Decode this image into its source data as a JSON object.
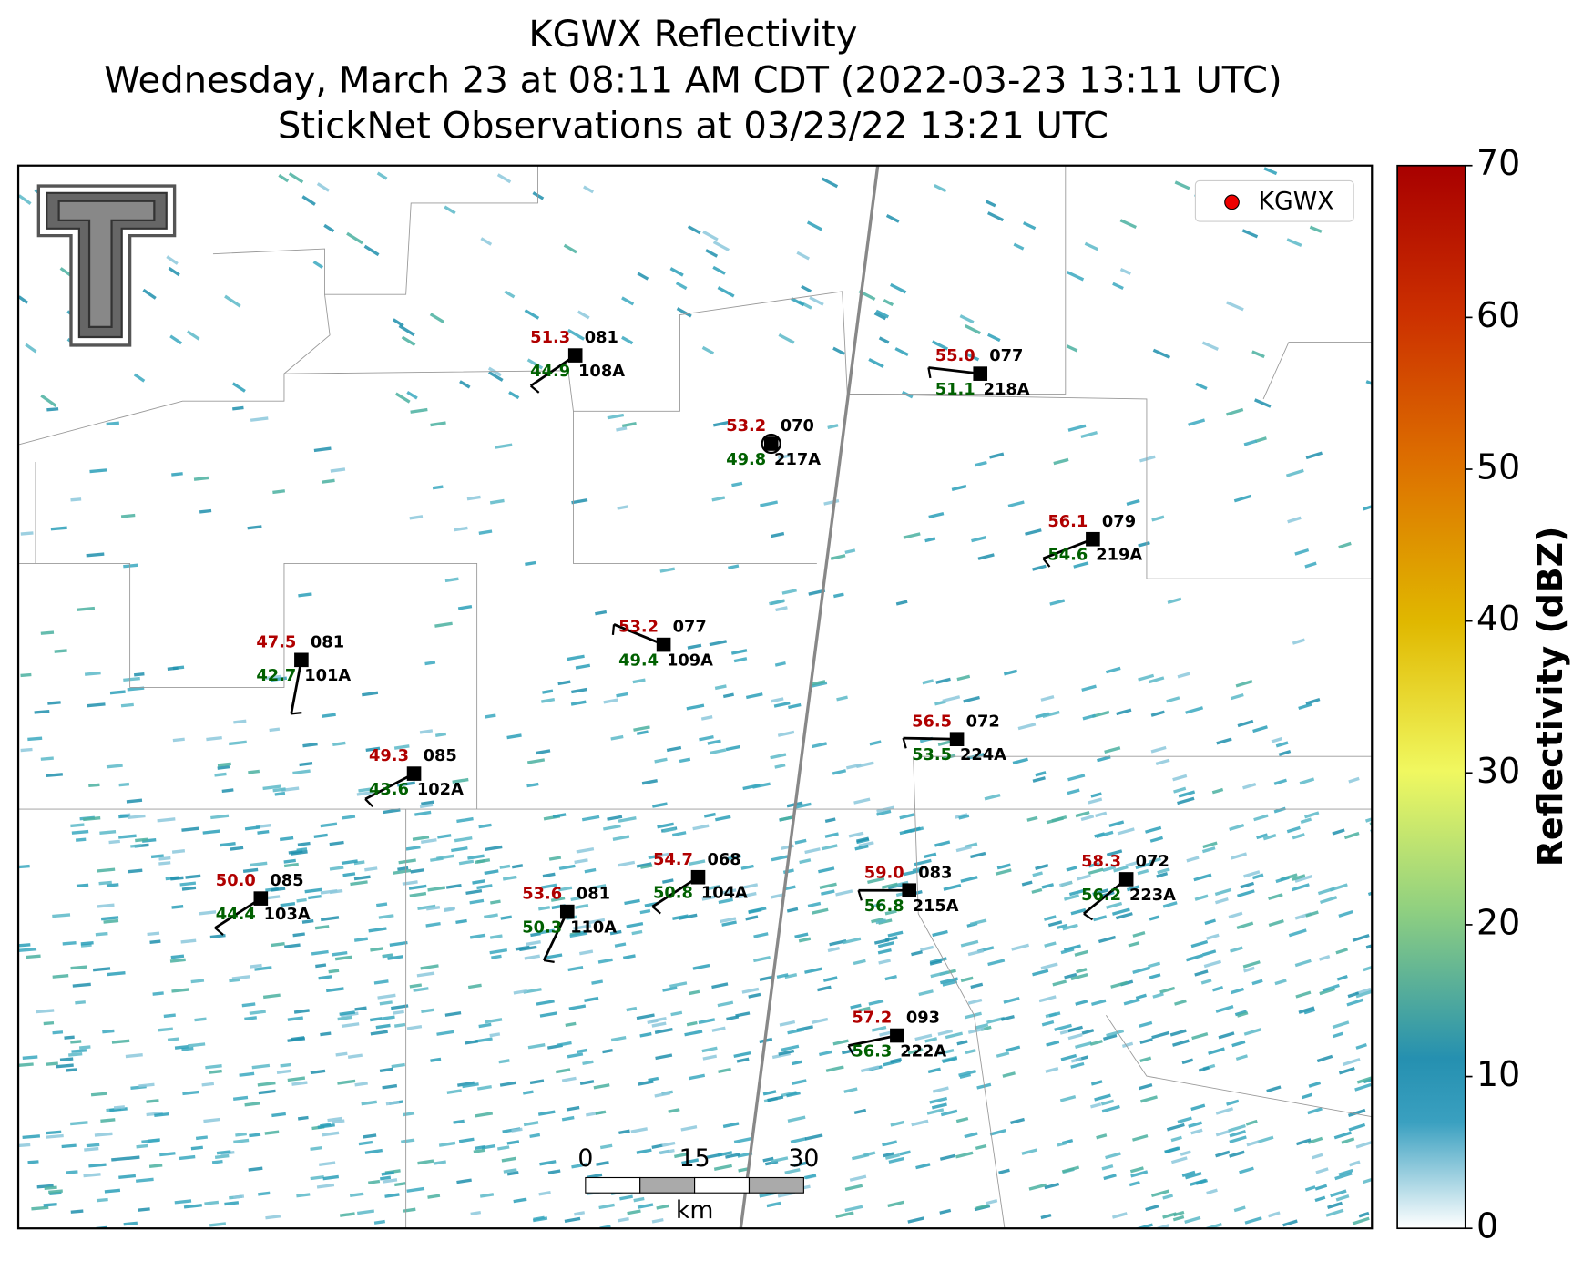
{
  "title_lines": [
    "KGWX Reflectivity",
    "Wednesday, March 23 at 08:11 AM CDT (2022-03-23 13:11 UTC)",
    "StickNet Observations at 03/23/22 13:21 UTC"
  ],
  "legend": {
    "label": "KGWX"
  },
  "colorbar": {
    "label": "Reflectivity (dBZ)",
    "lim": [
      0,
      70
    ],
    "ticks": [
      0,
      10,
      20,
      30,
      40,
      50,
      60,
      70
    ]
  },
  "scale_bar": {
    "ticks": [
      0,
      15,
      30
    ],
    "unit": "km"
  },
  "stations": [
    {
      "id": "108A",
      "temp": "51.3",
      "pressure": "081",
      "dewpoint": "44.9"
    },
    {
      "id": "217A",
      "temp": "53.2",
      "pressure": "070",
      "dewpoint": "49.8"
    },
    {
      "id": "218A",
      "temp": "55.0",
      "pressure": "077",
      "dewpoint": "51.1"
    },
    {
      "id": "219A",
      "temp": "56.1",
      "pressure": "079",
      "dewpoint": "54.6"
    },
    {
      "id": "109A",
      "temp": "53.2",
      "pressure": "077",
      "dewpoint": "49.4"
    },
    {
      "id": "101A",
      "temp": "47.5",
      "pressure": "081",
      "dewpoint": "42.7"
    },
    {
      "id": "224A",
      "temp": "56.5",
      "pressure": "072",
      "dewpoint": "53.5"
    },
    {
      "id": "102A",
      "temp": "49.3",
      "pressure": "085",
      "dewpoint": "43.6"
    },
    {
      "id": "104A",
      "temp": "54.7",
      "pressure": "068",
      "dewpoint": "50.8"
    },
    {
      "id": "215A",
      "temp": "59.0",
      "pressure": "083",
      "dewpoint": "56.8"
    },
    {
      "id": "223A",
      "temp": "58.3",
      "pressure": "072",
      "dewpoint": "56.2"
    },
    {
      "id": "103A",
      "temp": "50.0",
      "pressure": "085",
      "dewpoint": "44.4"
    },
    {
      "id": "110A",
      "temp": "53.6",
      "pressure": "081",
      "dewpoint": "50.3"
    },
    {
      "id": "222A",
      "temp": "57.2",
      "pressure": "093",
      "dewpoint": "56.3"
    }
  ]
}
